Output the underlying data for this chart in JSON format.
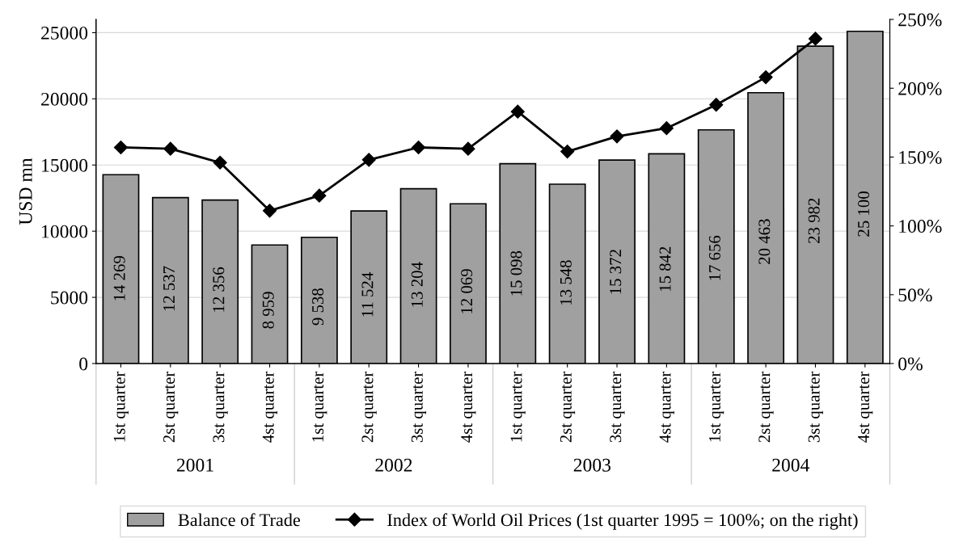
{
  "chart_data": {
    "type": "bar",
    "ylabel": "USD mn",
    "categories": [
      "1st quarter",
      "2st quarter",
      "3st quarter",
      "4st quarter",
      "1st quarter",
      "2st quarter",
      "3st quarter",
      "4st quarter",
      "1st quarter",
      "2st quarter",
      "3st quarter",
      "4st quarter",
      "1st quarter",
      "2st quarter",
      "3st quarter",
      "4st quarter"
    ],
    "annotations": [
      "2001",
      "2002",
      "2003",
      "2004"
    ],
    "series": [
      {
        "name": "Balance of Trade",
        "color": "#a0a0a0",
        "values": [
          14269,
          12537,
          12356,
          8959,
          9538,
          11524,
          13204,
          12069,
          15098,
          13548,
          15372,
          15842,
          17656,
          20463,
          23982,
          25100
        ],
        "value_labels": [
          "14 269",
          "12 537",
          "12 356",
          "8 959",
          "9 538",
          "11 524",
          "13 204",
          "12 069",
          "15 098",
          "13 548",
          "15 372",
          "15 842",
          "17 656",
          "20 463",
          "23 982",
          "25 100"
        ]
      },
      {
        "name": "Index of World Oil Prices (1st quarter 1995 = 100%; on the right)",
        "type": "line",
        "axis": "y2",
        "color": "#000000",
        "marker": "diamond",
        "values": [
          157,
          156,
          146,
          111,
          122,
          148,
          157,
          156,
          183,
          154,
          165,
          171,
          188,
          208,
          236,
          null
        ]
      }
    ],
    "ylim": [
      0,
      26000
    ],
    "yticks": [
      0,
      5000,
      10000,
      15000,
      20000,
      25000
    ],
    "y2lim": [
      0,
      250
    ],
    "y2ticks": [
      {
        "value": 0,
        "label": "0%"
      },
      {
        "value": 50,
        "label": "50%"
      },
      {
        "value": 100,
        "label": "100%"
      },
      {
        "value": 150,
        "label": "150%"
      },
      {
        "value": 200,
        "label": "200%"
      },
      {
        "value": 250,
        "label": "250%"
      }
    ],
    "grid": "y",
    "legend": "bottom"
  }
}
